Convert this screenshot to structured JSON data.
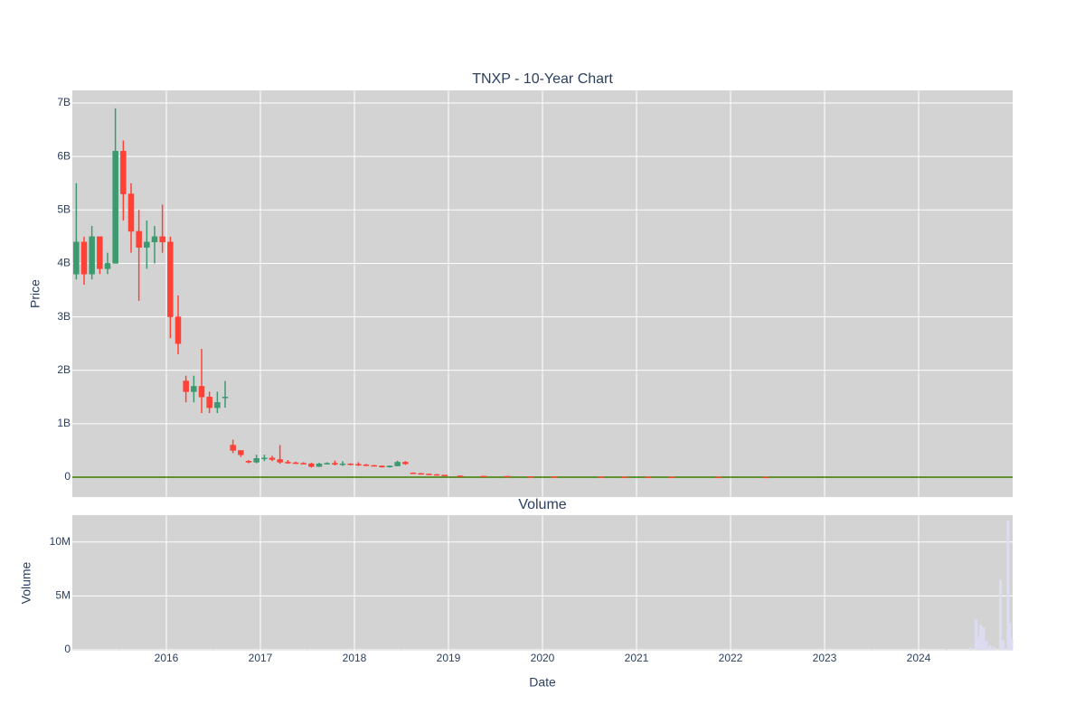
{
  "chart_data": [
    {
      "type": "candlestick",
      "title": "TNXP - 10-Year Chart",
      "y_label": "Price",
      "increasing_color": "#3d9970",
      "decreasing_color": "#ff4136",
      "zeroline": true,
      "zeroline_color": "#3a7d00",
      "grid": true,
      "x_tick_labels": false,
      "xlim": [
        2015,
        2025
      ],
      "xticks": [
        2016,
        2017,
        2018,
        2019,
        2020,
        2021,
        2022,
        2023,
        2024
      ],
      "ylim": [
        -372000000.0,
        7237000000.0
      ],
      "yticks": [
        0,
        {
          "value": 1000000000.0,
          "label": "1B"
        },
        {
          "value": 2000000000.0,
          "label": "2B"
        },
        {
          "value": 3000000000.0,
          "label": "3B"
        },
        {
          "value": 4000000000.0,
          "label": "4B"
        },
        {
          "value": 5000000000.0,
          "label": "5B"
        },
        {
          "value": 6000000000.0,
          "label": "6B"
        },
        {
          "value": 7000000000.0,
          "label": "7B"
        }
      ],
      "x": [
        2015.042,
        2015.125,
        2015.208,
        2015.292,
        2015.375,
        2015.458,
        2015.542,
        2015.625,
        2015.708,
        2015.792,
        2015.875,
        2015.958,
        2016.042,
        2016.125,
        2016.208,
        2016.292,
        2016.375,
        2016.458,
        2016.542,
        2016.625,
        2016.708,
        2016.792,
        2016.875,
        2016.958,
        2017.042,
        2017.125,
        2017.208,
        2017.292,
        2017.375,
        2017.458,
        2017.542,
        2017.625,
        2017.708,
        2017.792,
        2017.875,
        2017.958,
        2018.042,
        2018.125,
        2018.208,
        2018.292,
        2018.375,
        2018.458,
        2018.542,
        2018.625,
        2018.708,
        2018.792,
        2018.875,
        2018.958,
        2019.125,
        2019.375,
        2019.625,
        2019.875,
        2020.125,
        2020.625,
        2020.875,
        2021.125,
        2021.375,
        2021.875,
        2022.375
      ],
      "open": [
        3800000000.0,
        4400000000.0,
        3800000000.0,
        4500000000.0,
        3900000000.0,
        4000000000.0,
        6100000000.0,
        5300000000.0,
        4600000000.0,
        4300000000.0,
        4400000000.0,
        4500000000.0,
        4400000000.0,
        3000000000.0,
        1800000000.0,
        1600000000.0,
        1700000000.0,
        1500000000.0,
        1300000000.0,
        1500000000.0,
        600000000.0,
        500000000.0,
        300000000.0,
        280000000.0,
        350000000.0,
        360000000.0,
        330000000.0,
        280000000.0,
        270000000.0,
        260000000.0,
        250000000.0,
        200000000.0,
        250000000.0,
        260000000.0,
        240000000.0,
        250000000.0,
        240000000.0,
        230000000.0,
        220000000.0,
        210000000.0,
        190000000.0,
        210000000.0,
        280000000.0,
        80000000.0,
        70000000.0,
        60000000.0,
        50000000.0,
        40000000.0,
        25000000.0,
        20000000.0,
        18000000.0,
        12000000.0,
        10000000.0,
        8000000.0,
        6000000.0,
        5000000.0,
        4000000.0,
        3000000.0,
        2500000.0
      ],
      "high": [
        5500000000.0,
        4500000000.0,
        4700000000.0,
        4500000000.0,
        4200000000.0,
        6900000000.0,
        6300000000.0,
        5500000000.0,
        5000000000.0,
        4800000000.0,
        4700000000.0,
        5100000000.0,
        4500000000.0,
        3400000000.0,
        1900000000.0,
        1900000000.0,
        2400000000.0,
        1600000000.0,
        1600000000.0,
        1800000000.0,
        700000000.0,
        500000000.0,
        320000000.0,
        420000000.0,
        420000000.0,
        400000000.0,
        600000000.0,
        320000000.0,
        290000000.0,
        280000000.0,
        270000000.0,
        270000000.0,
        280000000.0,
        310000000.0,
        300000000.0,
        260000000.0,
        280000000.0,
        250000000.0,
        230000000.0,
        220000000.0,
        220000000.0,
        310000000.0,
        300000000.0,
        90000000.0,
        80000000.0,
        65000000.0,
        60000000.0,
        45000000.0,
        30000000.0,
        25000000.0,
        20000000.0,
        15000000.0,
        12000000.0,
        9000000.0,
        8000000.0,
        6000000.0,
        5000000.0,
        4000000.0,
        3000000.0
      ],
      "low": [
        3700000000.0,
        3600000000.0,
        3700000000.0,
        3800000000.0,
        3800000000.0,
        4000000000.0,
        4800000000.0,
        4200000000.0,
        3300000000.0,
        3900000000.0,
        4000000000.0,
        4200000000.0,
        2600000000.0,
        2300000000.0,
        1400000000.0,
        1400000000.0,
        1200000000.0,
        1200000000.0,
        1200000000.0,
        1300000000.0,
        450000000.0,
        380000000.0,
        260000000.0,
        260000000.0,
        300000000.0,
        300000000.0,
        250000000.0,
        250000000.0,
        250000000.0,
        240000000.0,
        180000000.0,
        190000000.0,
        240000000.0,
        220000000.0,
        210000000.0,
        220000000.0,
        210000000.0,
        210000000.0,
        200000000.0,
        180000000.0,
        180000000.0,
        210000000.0,
        230000000.0,
        60000000.0,
        50000000.0,
        40000000.0,
        30000000.0,
        20000000.0,
        18000000.0,
        15000000.0,
        10000000.0,
        8000000.0,
        6000000.0,
        5000000.0,
        4000000.0,
        3000000.0,
        2000000.0,
        2000000.0,
        1000000.0
      ],
      "close": [
        4400000000.0,
        3800000000.0,
        4500000000.0,
        3900000000.0,
        4000000000.0,
        6100000000.0,
        5300000000.0,
        4600000000.0,
        4300000000.0,
        4400000000.0,
        4500000000.0,
        4400000000.0,
        3000000000.0,
        2500000000.0,
        1600000000.0,
        1700000000.0,
        1500000000.0,
        1300000000.0,
        1400000000.0,
        1500000000.0,
        500000000.0,
        420000000.0,
        280000000.0,
        350000000.0,
        360000000.0,
        330000000.0,
        280000000.0,
        270000000.0,
        260000000.0,
        250000000.0,
        200000000.0,
        250000000.0,
        260000000.0,
        240000000.0,
        250000000.0,
        240000000.0,
        230000000.0,
        220000000.0,
        210000000.0,
        190000000.0,
        210000000.0,
        280000000.0,
        250000000.0,
        70000000.0,
        60000000.0,
        50000000.0,
        40000000.0,
        25000000.0,
        20000000.0,
        18000000.0,
        12000000.0,
        10000000.0,
        8000000.0,
        6000000.0,
        5000000.0,
        4000000.0,
        3000000.0,
        2500000.0,
        2000000.0
      ]
    },
    {
      "type": "bar",
      "title": "Volume",
      "y_label": "Volume",
      "x_label": "Date",
      "color": "#dcdcf2",
      "grid": true,
      "xlim": [
        2015,
        2025
      ],
      "xticks": [
        2016,
        2017,
        2018,
        2019,
        2020,
        2021,
        2022,
        2023,
        2024
      ],
      "ylim": [
        -80000.0,
        12500000.0
      ],
      "yticks": [
        0,
        {
          "value": 5000000.0,
          "label": "5M"
        },
        {
          "value": 10000000.0,
          "label": "10M"
        }
      ],
      "x": [
        2015.5,
        2016.5,
        2017.5,
        2018.5,
        2019.5,
        2020.5,
        2021.5,
        2022.5,
        2023.5,
        2024.3,
        2024.55,
        2024.61,
        2024.63,
        2024.66,
        2024.69,
        2024.72,
        2024.76,
        2024.8,
        2024.87,
        2024.9,
        2024.95,
        2024.97,
        2024.99
      ],
      "values": [
        20000.0,
        30000.0,
        20000.0,
        20000.0,
        10000.0,
        10000.0,
        10000.0,
        10000.0,
        20000.0,
        50000.0,
        200000.0,
        2800000.0,
        1200000.0,
        2300000.0,
        2100000.0,
        800000.0,
        400000.0,
        300000.0,
        6500000.0,
        900000.0,
        12000000.0,
        2500000.0,
        1000000.0
      ]
    }
  ]
}
